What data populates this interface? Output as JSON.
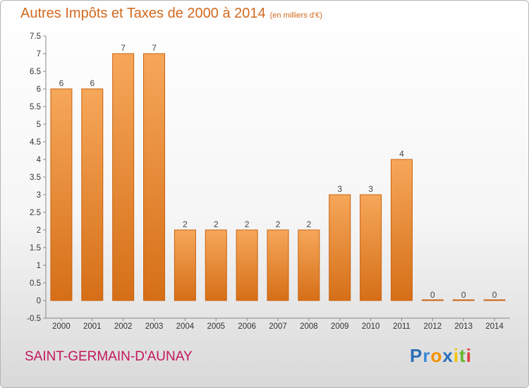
{
  "header": {
    "title": "Autres Impôts et Taxes de 2000 à 2014",
    "subtitle": "(en milliers d'€)"
  },
  "footer": {
    "commune": "SAINT-GERMAIN-D'AUNAY",
    "brand": {
      "letters": [
        "P",
        "r",
        "o",
        "x",
        "i",
        "t",
        "i"
      ],
      "colors": [
        "#2b6fb6",
        "#3a8ad6",
        "#f29100",
        "#2b6fb6",
        "#f5c400",
        "#69b42e",
        "#e03a3a"
      ]
    }
  },
  "chart_data": {
    "type": "bar",
    "title": "Autres Impôts et Taxes de 2000 à 2014",
    "subtitle": "(en milliers d'€)",
    "categories": [
      "2000",
      "2001",
      "2002",
      "2003",
      "2004",
      "2005",
      "2006",
      "2007",
      "2008",
      "2009",
      "2010",
      "2011",
      "2012",
      "2013",
      "2014"
    ],
    "values": [
      6,
      6,
      7,
      7,
      2,
      2,
      2,
      2,
      2,
      3,
      3,
      4,
      0,
      0,
      0
    ],
    "value_labels": [
      "6",
      "6",
      "7",
      "7",
      "2",
      "2",
      "2",
      "2",
      "2",
      "3",
      "3",
      "4",
      "0",
      "0",
      "0"
    ],
    "ylim": [
      -0.5,
      7.5
    ],
    "yticks": [
      -0.5,
      0,
      0.5,
      1,
      1.5,
      2,
      2.5,
      3,
      3.5,
      4,
      4.5,
      5,
      5.5,
      6,
      6.5,
      7,
      7.5
    ],
    "ytick_labels": [
      "-0.5",
      "0",
      "0.5",
      "1",
      "1.5",
      "2",
      "2.5",
      "3",
      "3.5",
      "4",
      "4.5",
      "5",
      "5.5",
      "6",
      "6.5",
      "7",
      "7.5"
    ],
    "xlabel": "",
    "ylabel": "",
    "grid": false,
    "legend": "none",
    "colors": {
      "bar_top": "#f6a75a",
      "bar_bottom": "#d56f17",
      "bar_edge": "#c9610f",
      "axis": "#888888"
    }
  }
}
